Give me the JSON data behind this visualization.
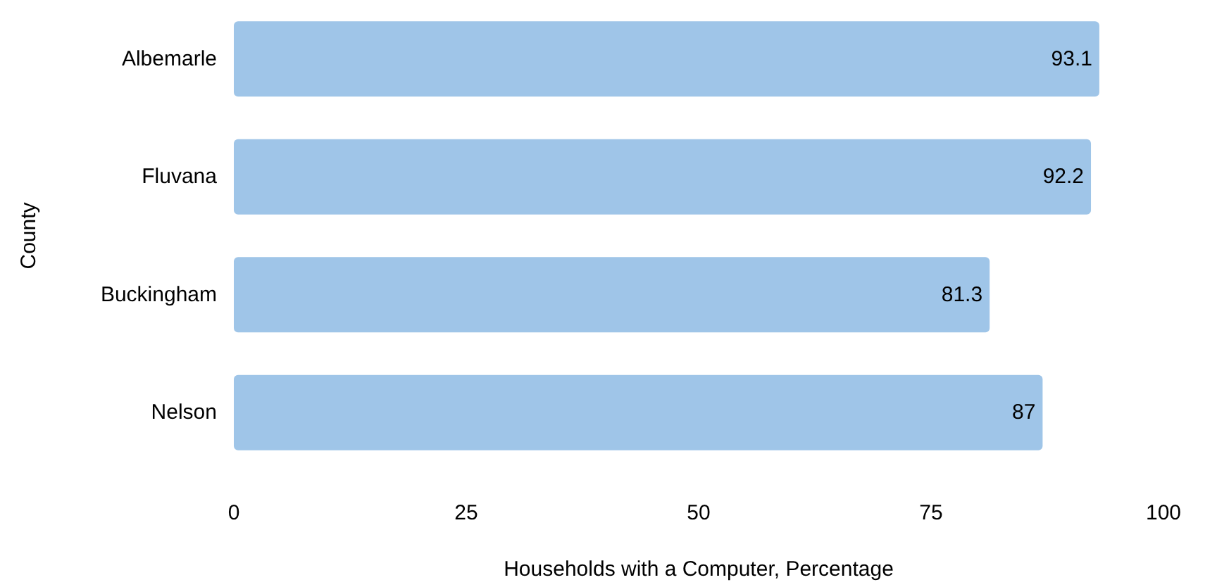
{
  "chart_data": {
    "type": "bar",
    "orientation": "horizontal",
    "xlabel": "Households with a Computer, Percentage",
    "ylabel": "County",
    "categories": [
      "Albemarle",
      "Fluvana",
      "Buckingham",
      "Nelson"
    ],
    "values": [
      93.1,
      92.2,
      81.3,
      87
    ],
    "color": "#9fc5e8",
    "xlim": [
      0,
      100
    ],
    "xticks": [
      0,
      25,
      50,
      75,
      100
    ],
    "grid": false,
    "data_labels": true
  }
}
